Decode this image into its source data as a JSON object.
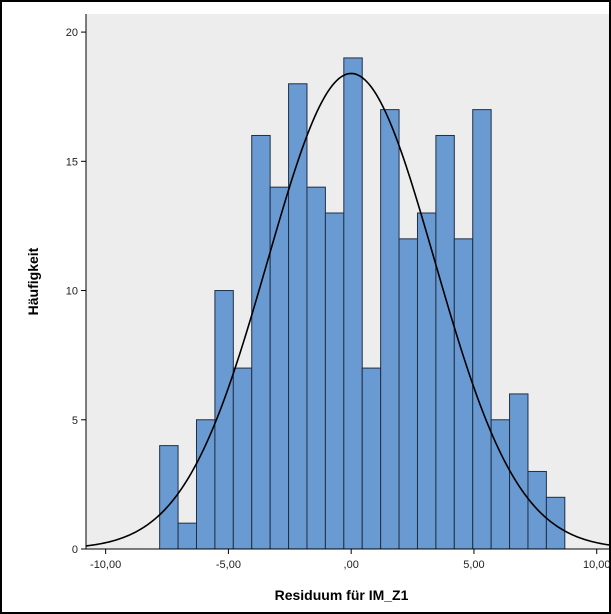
{
  "chart_data": {
    "type": "bar",
    "xlabel": "Residuum für IM_Z1",
    "ylabel": "Häufigkeit",
    "xlim": [
      -10.8,
      10.5
    ],
    "ylim": [
      0,
      20.7
    ],
    "x_ticks": [
      -10,
      -5,
      0,
      5,
      10
    ],
    "x_tick_labels": [
      "-10,00",
      "-5,00",
      ",00",
      "5,00",
      "10,00"
    ],
    "y_ticks": [
      0,
      5,
      10,
      15,
      20
    ],
    "y_tick_labels": [
      "0",
      "5",
      "10",
      "15",
      "20"
    ],
    "bin_width": 0.75,
    "bins": [
      {
        "start": -7.8,
        "value": 4
      },
      {
        "start": -7.05,
        "value": 1
      },
      {
        "start": -6.3,
        "value": 5
      },
      {
        "start": -5.55,
        "value": 10
      },
      {
        "start": -4.8,
        "value": 7
      },
      {
        "start": -4.05,
        "value": 16
      },
      {
        "start": -3.3,
        "value": 14
      },
      {
        "start": -2.55,
        "value": 18
      },
      {
        "start": -1.8,
        "value": 14
      },
      {
        "start": -1.05,
        "value": 13
      },
      {
        "start": -0.3,
        "value": 19
      },
      {
        "start": 0.45,
        "value": 7
      },
      {
        "start": 1.2,
        "value": 17
      },
      {
        "start": 1.95,
        "value": 12
      },
      {
        "start": 2.7,
        "value": 13
      },
      {
        "start": 3.45,
        "value": 16
      },
      {
        "start": 4.2,
        "value": 12
      },
      {
        "start": 4.95,
        "value": 17
      },
      {
        "start": 5.7,
        "value": 5
      },
      {
        "start": 6.45,
        "value": 6
      },
      {
        "start": 7.2,
        "value": 3
      },
      {
        "start": 7.95,
        "value": 2
      }
    ],
    "normal_curve": {
      "mean": 0,
      "sd": 3.4,
      "peak": 18.4
    },
    "grid": false,
    "colors": {
      "bar_fill": "#6a9ad2",
      "bar_stroke": "#1f2f44",
      "plot_background": "#ededed",
      "curve": "#000000"
    }
  }
}
